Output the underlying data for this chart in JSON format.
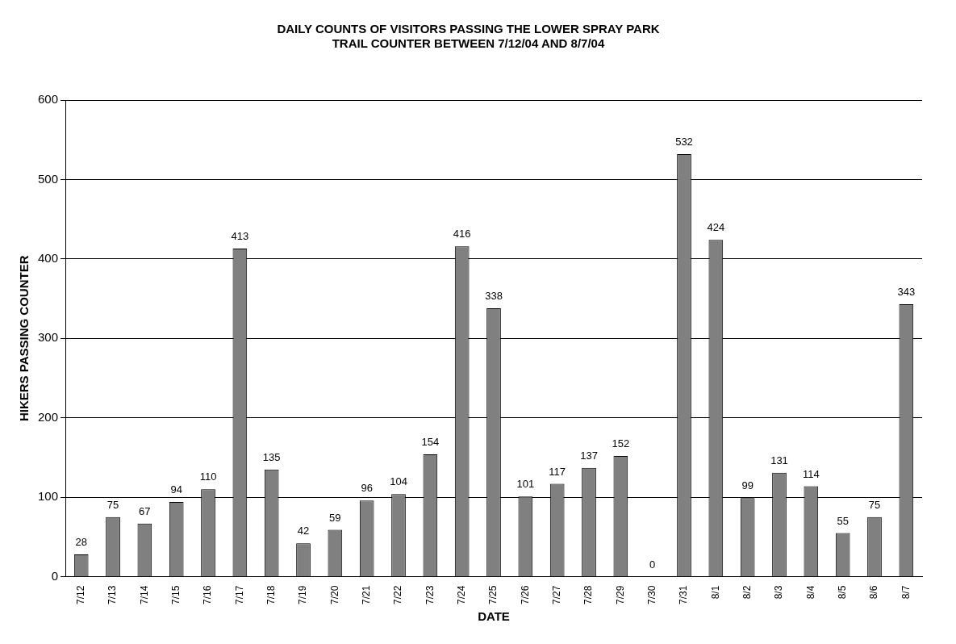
{
  "chart_data": {
    "type": "bar",
    "title": "DAILY COUNTS OF VISITORS PASSING THE LOWER SPRAY PARK TRAIL COUNTER BETWEEN 7/12/04 AND 8/7/04",
    "xlabel": "DATE",
    "ylabel": "HIKERS PASSING COUNTER",
    "categories": [
      "7/12",
      "7/13",
      "7/14",
      "7/15",
      "7/16",
      "7/17",
      "7/18",
      "7/19",
      "7/20",
      "7/21",
      "7/22",
      "7/23",
      "7/24",
      "7/25",
      "7/26",
      "7/27",
      "7/28",
      "7/29",
      "7/30",
      "7/31",
      "8/1",
      "8/2",
      "8/3",
      "8/4",
      "8/5",
      "8/6",
      "8/7"
    ],
    "values": [
      28,
      75,
      67,
      94,
      110,
      413,
      135,
      42,
      59,
      96,
      104,
      154,
      416,
      338,
      101,
      117,
      137,
      152,
      0,
      532,
      424,
      99,
      131,
      114,
      55,
      75,
      343
    ],
    "color": "#808080",
    "ylim": [
      0,
      600
    ],
    "yticks": [
      0,
      100,
      200,
      300,
      400,
      500,
      600
    ],
    "grid": "y",
    "legend": false,
    "data_labels": true
  }
}
